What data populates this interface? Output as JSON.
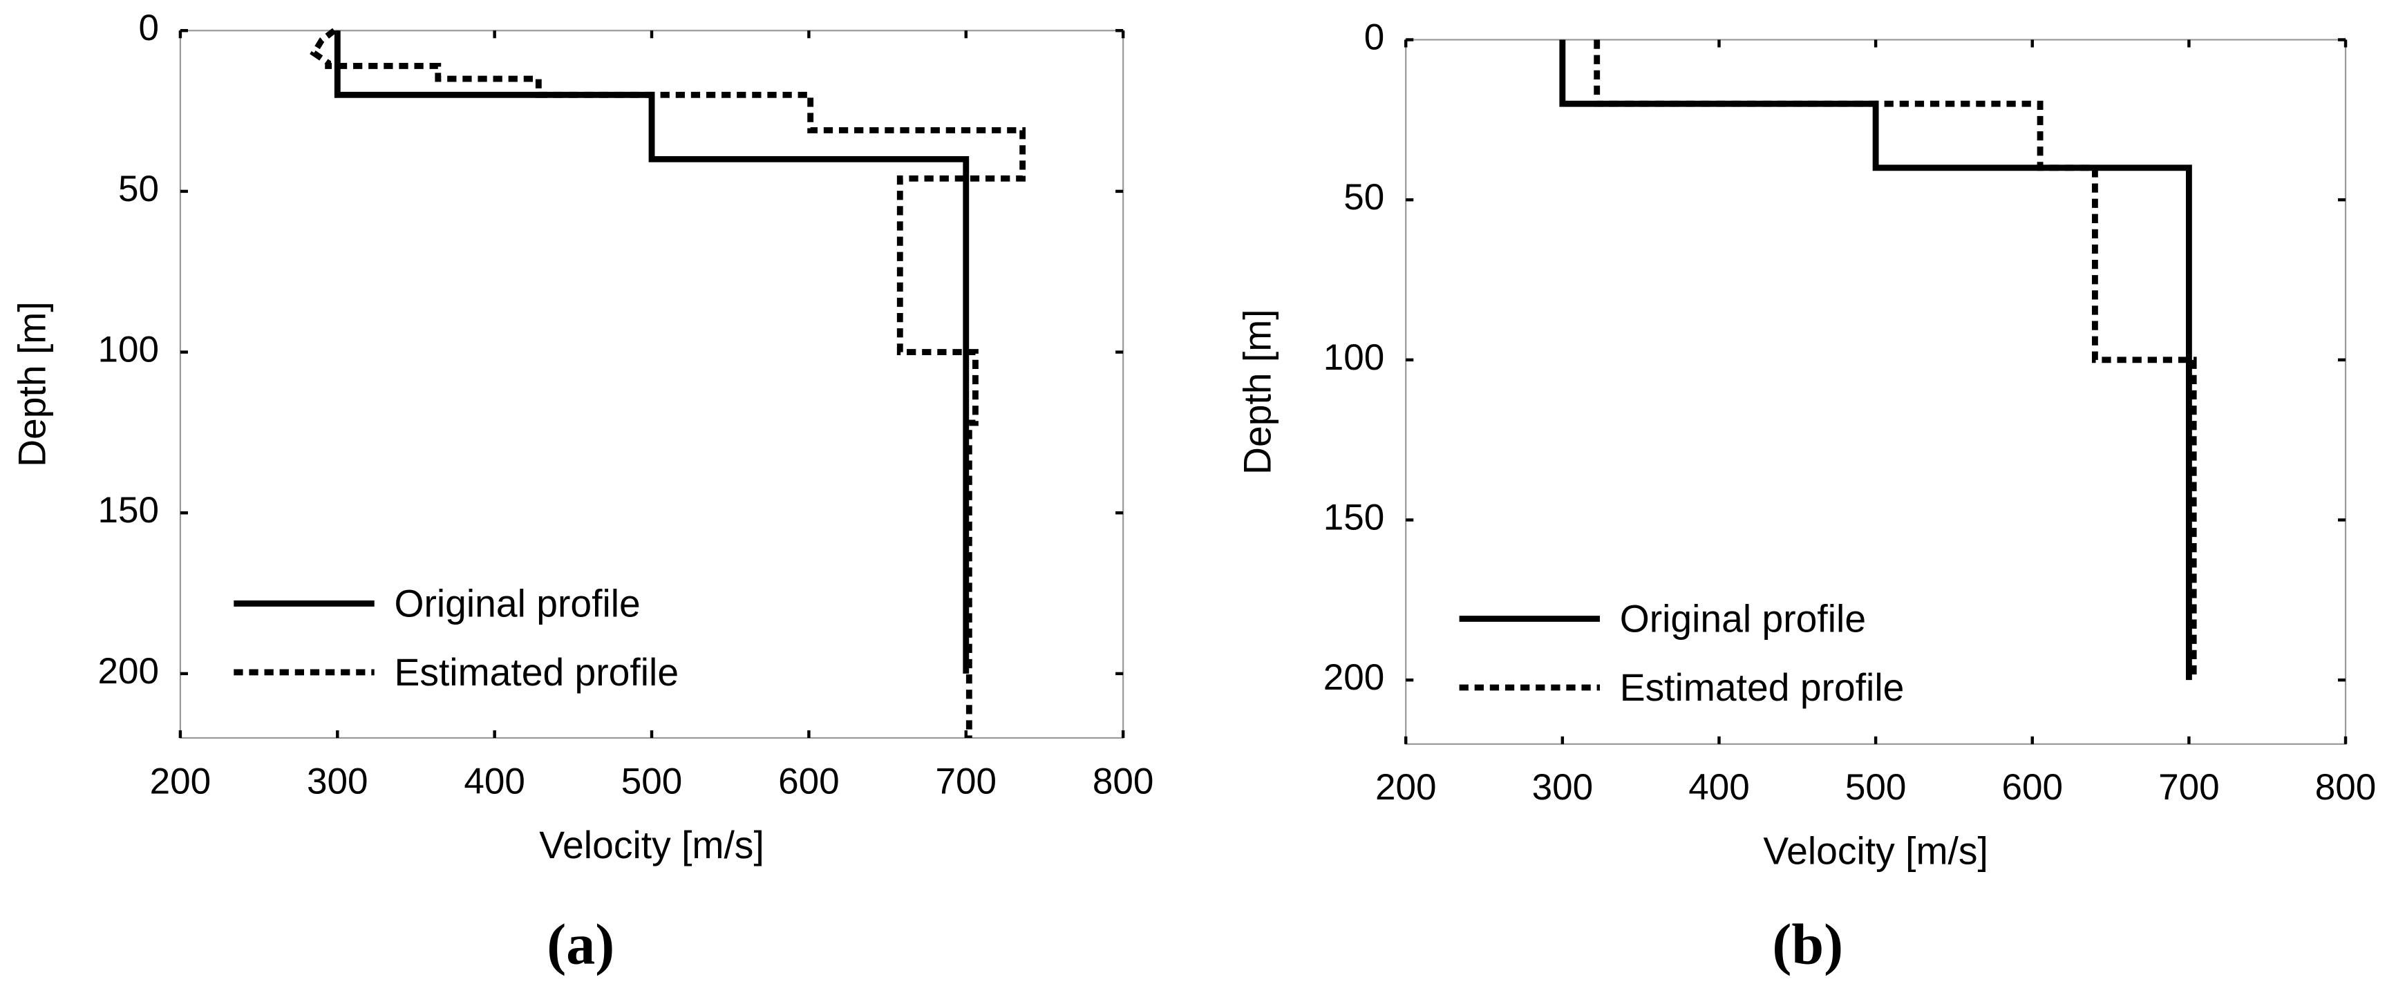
{
  "chart_data": [
    {
      "type": "line",
      "panel_label": "(a)",
      "xlabel": "Velocity [m/s]",
      "ylabel": "Depth [m]",
      "xlim": [
        200,
        800
      ],
      "xticks": [
        200,
        300,
        400,
        500,
        600,
        700,
        800
      ],
      "ylim": [
        0,
        220
      ],
      "yticks": [
        0,
        50,
        100,
        150,
        200
      ],
      "y_reversed": true,
      "legend": "lower left",
      "series": [
        {
          "name": "Original profile",
          "color": "#000000",
          "style": "solid",
          "x": [
            300,
            300,
            500,
            500,
            700,
            700
          ],
          "values": [
            0,
            20,
            20,
            40,
            40,
            200
          ]
        },
        {
          "name": "Estimated profile",
          "color": "#000000",
          "style": "dotted",
          "x": [
            298,
            290,
            285,
            294,
            294,
            364,
            364,
            428,
            428,
            601,
            601,
            736,
            736,
            658,
            658,
            706,
            706,
            702,
            702
          ],
          "values": [
            0,
            3,
            7,
            10,
            11,
            11,
            15,
            15,
            20,
            20,
            31,
            31,
            46,
            46,
            100,
            100,
            122,
            122,
            220
          ]
        }
      ]
    },
    {
      "type": "line",
      "panel_label": "(b)",
      "xlabel": "Velocity [m/s]",
      "ylabel": "Depth [m]",
      "xlim": [
        200,
        800
      ],
      "xticks": [
        200,
        300,
        400,
        500,
        600,
        700,
        800
      ],
      "ylim": [
        0,
        220
      ],
      "yticks": [
        0,
        50,
        100,
        150,
        200
      ],
      "y_reversed": true,
      "legend": "lower left",
      "series": [
        {
          "name": "Original profile",
          "color": "#000000",
          "style": "solid",
          "x": [
            300,
            300,
            500,
            500,
            700,
            700
          ],
          "values": [
            0,
            20,
            20,
            40,
            40,
            200
          ]
        },
        {
          "name": "Estimated profile",
          "color": "#000000",
          "style": "dotted",
          "x": [
            322,
            322,
            605,
            605,
            640,
            640,
            703,
            703
          ],
          "values": [
            0,
            20,
            20,
            40,
            40,
            100,
            100,
            200
          ]
        }
      ]
    }
  ]
}
